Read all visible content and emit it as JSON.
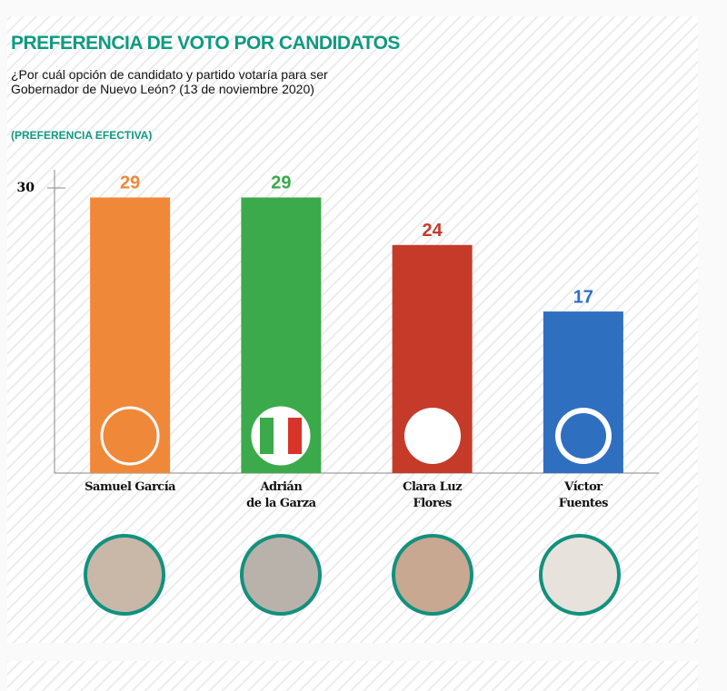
{
  "chart_data": {
    "type": "bar",
    "title": "PREFERENCIA DE VOTO POR CANDIDATOS",
    "subtitle": "¿Por cuál opción de candidato y partido votaría para ser\nGobernador de Nuevo León? (13 de noviembre 2020)",
    "note": "(PREFERENCIA EFECTIVA)",
    "categories": [
      "Samuel García",
      "Adrián\nde la Garza",
      "Clara Luz\nFlores",
      "Víctor\nFuentes"
    ],
    "values": [
      29,
      29,
      24,
      17
    ],
    "colors": [
      "#f0883a",
      "#3aaa4a",
      "#c63a2a",
      "#2f6fc0"
    ],
    "ylim": [
      0,
      30
    ],
    "yticks": [
      30
    ],
    "grid": false
  }
}
